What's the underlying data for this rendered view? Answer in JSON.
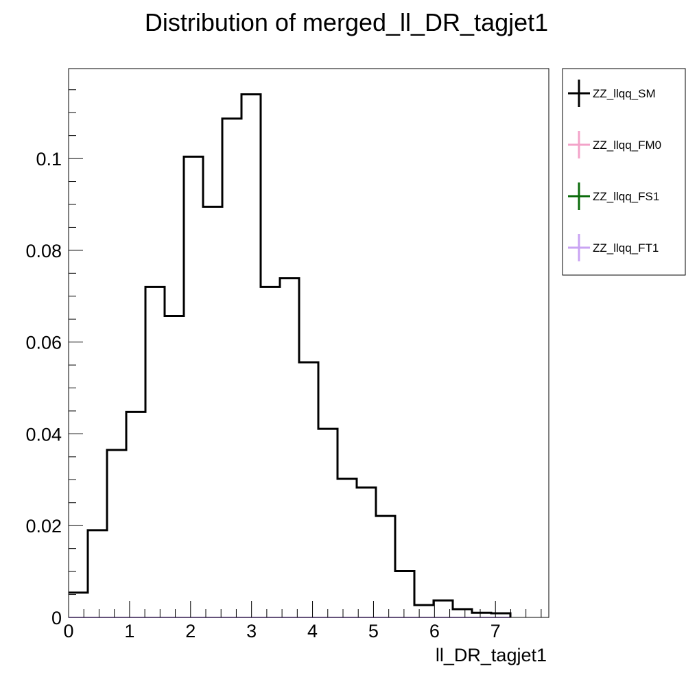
{
  "chart_data": {
    "type": "histogram",
    "title": "Distribution of merged_ll_DR_tagjet1",
    "xlabel": "ll_DR_tagjet1",
    "ylabel": "",
    "xlim": [
      0,
      7.875
    ],
    "ylim": [
      0,
      0.1196
    ],
    "x_ticks": [
      0,
      1,
      2,
      3,
      4,
      5,
      6,
      7
    ],
    "x_tick_labels": [
      "0",
      "1",
      "2",
      "3",
      "4",
      "5",
      "6",
      "7"
    ],
    "y_ticks": [
      0,
      0.02,
      0.04,
      0.06,
      0.08,
      0.1
    ],
    "y_tick_labels": [
      "0",
      "0.02",
      "0.04",
      "0.06",
      "0.08",
      "0.1"
    ],
    "bin_edges": [
      0,
      0.315,
      0.63,
      0.945,
      1.26,
      1.575,
      1.89,
      2.205,
      2.52,
      2.835,
      3.15,
      3.465,
      3.78,
      4.095,
      4.41,
      4.725,
      5.04,
      5.355,
      5.67,
      5.985,
      6.3,
      6.615,
      6.93,
      7.245
    ],
    "legend_position": "outside-right",
    "series": [
      {
        "name": "ZZ_llqq_SM",
        "color": "#000000",
        "values": [
          0.0054,
          0.019,
          0.0365,
          0.0448,
          0.072,
          0.0657,
          0.1004,
          0.0895,
          0.1087,
          0.114,
          0.072,
          0.0739,
          0.0556,
          0.0411,
          0.0302,
          0.0283,
          0.0221,
          0.0101,
          0.0027,
          0.0037,
          0.0018,
          0.001,
          0.0009
        ]
      },
      {
        "name": "ZZ_llqq_FM0",
        "color": "#f3a3c9",
        "values": [
          0,
          0,
          0,
          0,
          0,
          0,
          0,
          0,
          0,
          0,
          0,
          0,
          0,
          0,
          0,
          0,
          0,
          0,
          0,
          0,
          0,
          0,
          0
        ]
      },
      {
        "name": "ZZ_llqq_FS1",
        "color": "#0b6b0b",
        "values": [
          0,
          0,
          0,
          0,
          0,
          0,
          0,
          0,
          0,
          0,
          0,
          0,
          0,
          0,
          0,
          0,
          0,
          0,
          0,
          0,
          0,
          0,
          0
        ]
      },
      {
        "name": "ZZ_llqq_FT1",
        "color": "#c9a3f3",
        "values": [
          0,
          0,
          0,
          0,
          0,
          0,
          0,
          0,
          0,
          0,
          0,
          0,
          0,
          0,
          0,
          0,
          0,
          0,
          0,
          0,
          0,
          0,
          0
        ]
      }
    ]
  }
}
